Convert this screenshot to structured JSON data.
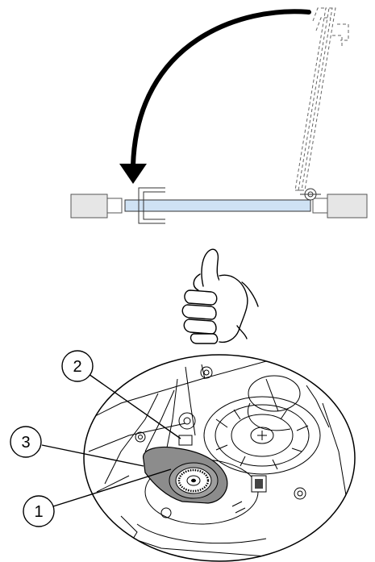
{
  "callouts": [
    {
      "number": "1"
    },
    {
      "number": "2"
    },
    {
      "number": "3"
    }
  ],
  "icons": {
    "rotate_arrow": "curved-arrow-icon",
    "approval": "thumbs-up-icon"
  },
  "colors": {
    "panel_fill": "#cfe2f4",
    "housing_fill": "#e6e6e6",
    "fan_fill": "#8c8c8c",
    "line": "#000000"
  }
}
